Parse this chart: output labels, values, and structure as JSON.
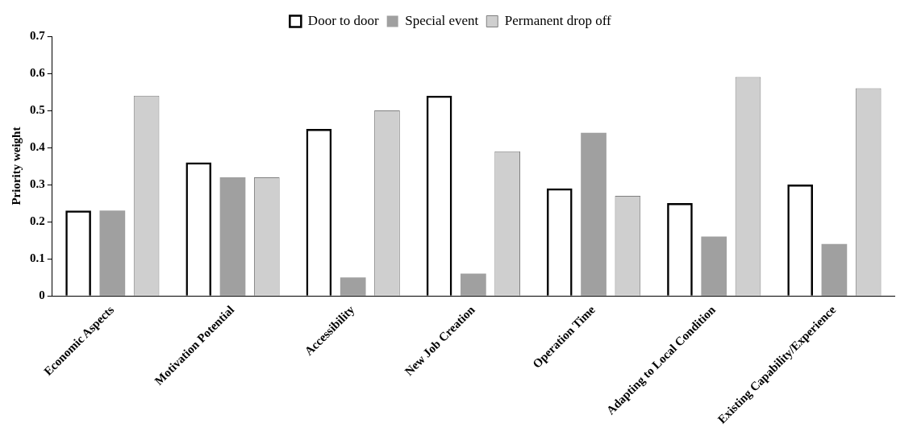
{
  "chart_data": {
    "type": "bar",
    "ylabel": "Priority weight",
    "categories": [
      "Economic Aspects",
      "Motivation Potential",
      "Accessibility",
      "New Job Creation",
      "Operation Time",
      "Adapting to Local Condition",
      "Existing Capability/Experience"
    ],
    "series": [
      {
        "name": "Door to door",
        "color": "#000000",
        "values": [
          0.23,
          0.36,
          0.45,
          0.54,
          0.29,
          0.25,
          0.3
        ]
      },
      {
        "name": "Special event",
        "color": "#a0a0a0",
        "values": [
          0.23,
          0.32,
          0.05,
          0.06,
          0.44,
          0.16,
          0.14
        ]
      },
      {
        "name": "Permanent drop off",
        "color": "#cfcfcf",
        "values": [
          0.54,
          0.32,
          0.5,
          0.39,
          0.27,
          0.59,
          0.56
        ]
      }
    ],
    "ylim": [
      0,
      0.7
    ],
    "yticks": [
      0,
      0.1,
      0.2,
      0.3,
      0.4,
      0.5,
      0.6,
      0.7
    ],
    "grid": false,
    "legend": "top"
  }
}
